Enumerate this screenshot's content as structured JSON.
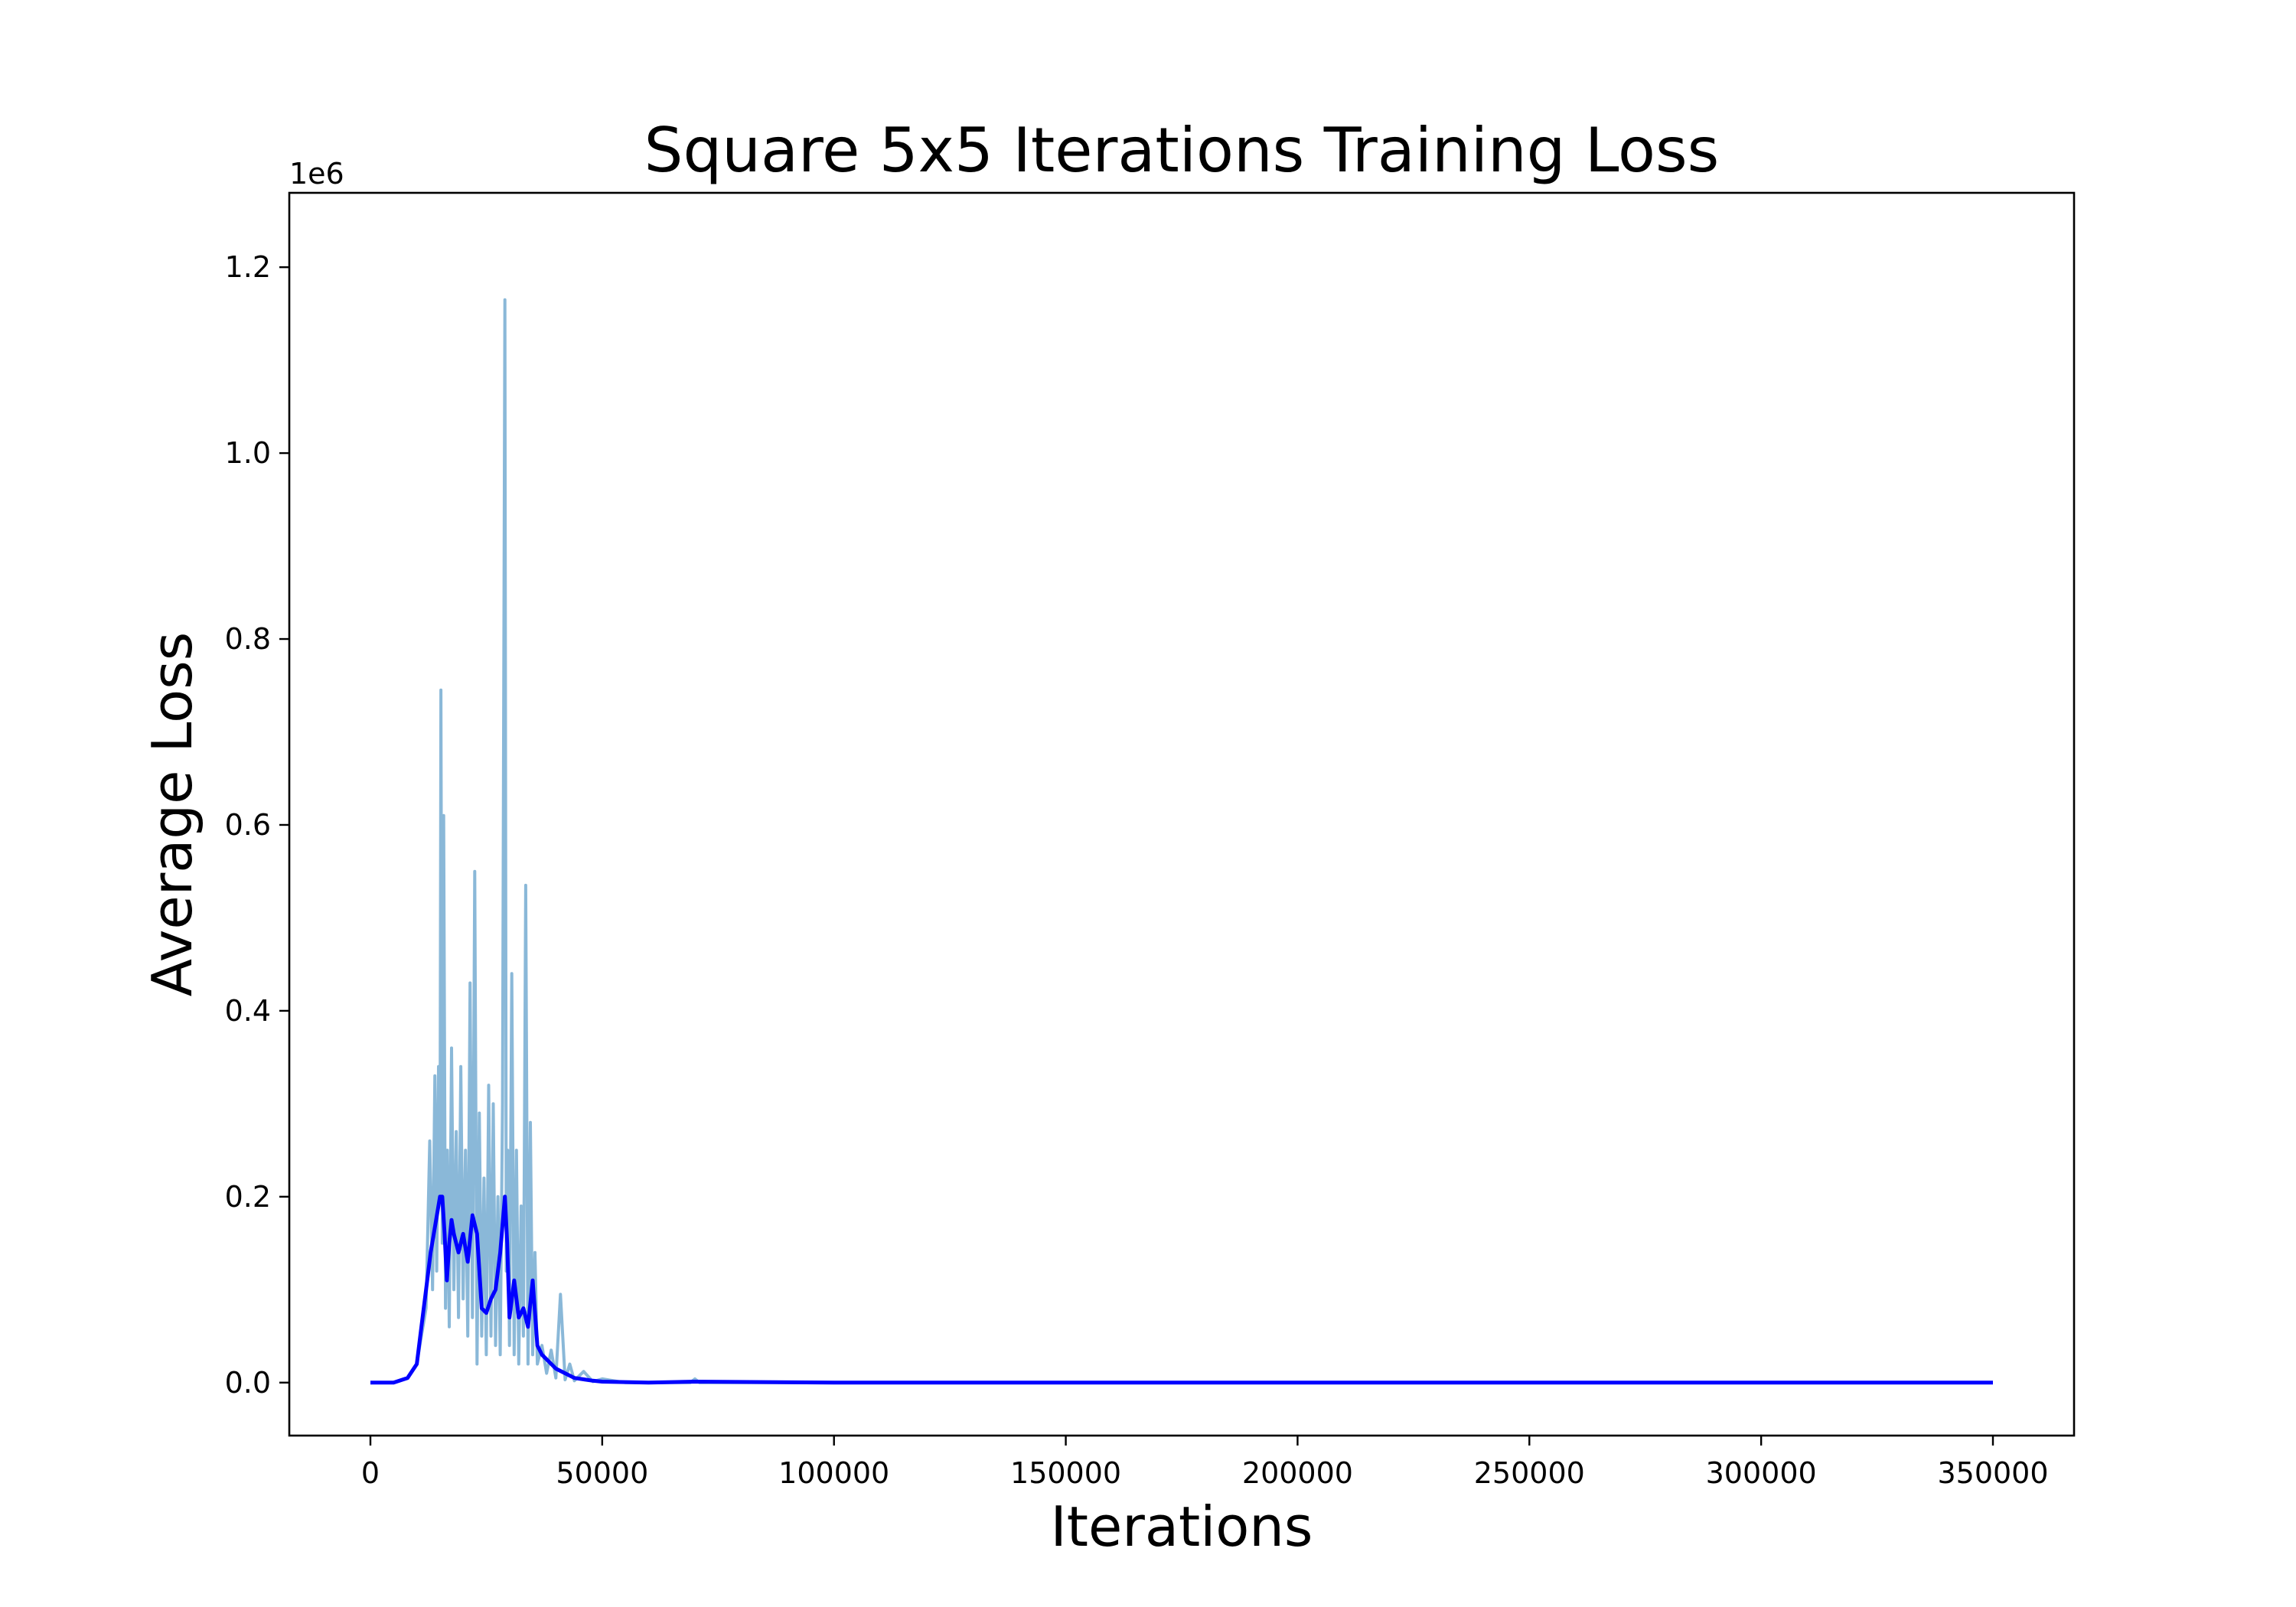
{
  "chart_data": {
    "type": "line",
    "title": "Square 5x5 Iterations Training Loss",
    "xlabel": "Iterations",
    "ylabel": "Average Loss",
    "y_offset_text": "1e6",
    "xlim": [
      -17500,
      367500
    ],
    "ylim": [
      -0.057,
      1.28
    ],
    "y_scale_note": "values in units of 1e6",
    "x_ticks": [
      0,
      50000,
      100000,
      150000,
      200000,
      250000,
      300000,
      350000
    ],
    "x_tick_labels": [
      "0",
      "50000",
      "100000",
      "150000",
      "200000",
      "250000",
      "300000",
      "350000"
    ],
    "y_ticks": [
      0.0,
      0.2,
      0.4,
      0.6,
      0.8,
      1.0,
      1.2
    ],
    "y_tick_labels": [
      "0.0",
      "0.2",
      "0.4",
      "0.6",
      "0.8",
      "1.0",
      "1.2"
    ],
    "grid": false,
    "legend": "none",
    "series": [
      {
        "role": "raw",
        "color": "#8ab8d8",
        "x": [
          0,
          5000,
          8000,
          10000,
          11000,
          12000,
          12800,
          13400,
          13900,
          14300,
          14700,
          15000,
          15200,
          15500,
          15800,
          16200,
          16600,
          17000,
          17500,
          18000,
          18500,
          19000,
          19500,
          20000,
          20500,
          21000,
          21500,
          22000,
          22500,
          23000,
          23500,
          24000,
          24500,
          25000,
          25500,
          26000,
          26500,
          27000,
          27500,
          28000,
          28500,
          29000,
          29300,
          29600,
          30000,
          30500,
          31000,
          31500,
          32000,
          32500,
          33000,
          33500,
          34000,
          34500,
          35000,
          35500,
          36000,
          37000,
          38000,
          39000,
          40000,
          41000,
          42000,
          43000,
          44000,
          46000,
          48000,
          50000,
          55000,
          60000,
          69000,
          70000,
          71000,
          80000,
          100000,
          150000,
          200000,
          250000,
          300000,
          350000
        ],
        "y": [
          0.0,
          0.0,
          0.005,
          0.02,
          0.05,
          0.08,
          0.26,
          0.1,
          0.33,
          0.12,
          0.34,
          0.2,
          0.745,
          0.15,
          0.61,
          0.08,
          0.25,
          0.06,
          0.36,
          0.1,
          0.27,
          0.07,
          0.34,
          0.09,
          0.25,
          0.05,
          0.43,
          0.07,
          0.55,
          0.02,
          0.29,
          0.05,
          0.22,
          0.03,
          0.32,
          0.05,
          0.3,
          0.04,
          0.2,
          0.03,
          0.3,
          1.165,
          0.12,
          0.25,
          0.04,
          0.44,
          0.03,
          0.25,
          0.02,
          0.19,
          0.05,
          0.535,
          0.02,
          0.28,
          0.03,
          0.14,
          0.02,
          0.04,
          0.01,
          0.035,
          0.005,
          0.095,
          0.003,
          0.02,
          0.002,
          0.012,
          0.001,
          0.004,
          0.0,
          0.0,
          0.0,
          0.004,
          0.0,
          0.0,
          0.0,
          0.0,
          0.0,
          0.0,
          0.0,
          0.0
        ]
      },
      {
        "role": "smoothed",
        "color": "#0000ff",
        "x": [
          0,
          5000,
          8000,
          10000,
          11000,
          12000,
          13000,
          14000,
          15000,
          15500,
          16000,
          16500,
          17000,
          17500,
          18000,
          19000,
          20000,
          21000,
          22000,
          23000,
          24000,
          25000,
          26000,
          27000,
          28000,
          29000,
          29500,
          30000,
          31000,
          32000,
          33000,
          34000,
          35000,
          36000,
          37000,
          38000,
          40000,
          42000,
          44000,
          48000,
          50000,
          60000,
          70000,
          100000,
          150000,
          200000,
          250000,
          300000,
          350000
        ],
        "y": [
          0.0,
          0.0,
          0.005,
          0.02,
          0.06,
          0.1,
          0.14,
          0.17,
          0.2,
          0.2,
          0.16,
          0.11,
          0.15,
          0.175,
          0.16,
          0.14,
          0.16,
          0.13,
          0.18,
          0.16,
          0.08,
          0.075,
          0.09,
          0.1,
          0.14,
          0.2,
          0.15,
          0.07,
          0.11,
          0.07,
          0.08,
          0.06,
          0.11,
          0.04,
          0.03,
          0.025,
          0.015,
          0.01,
          0.005,
          0.002,
          0.001,
          0.0,
          0.001,
          0.0,
          0.0,
          0.0,
          0.0,
          0.0,
          0.0
        ]
      }
    ]
  }
}
